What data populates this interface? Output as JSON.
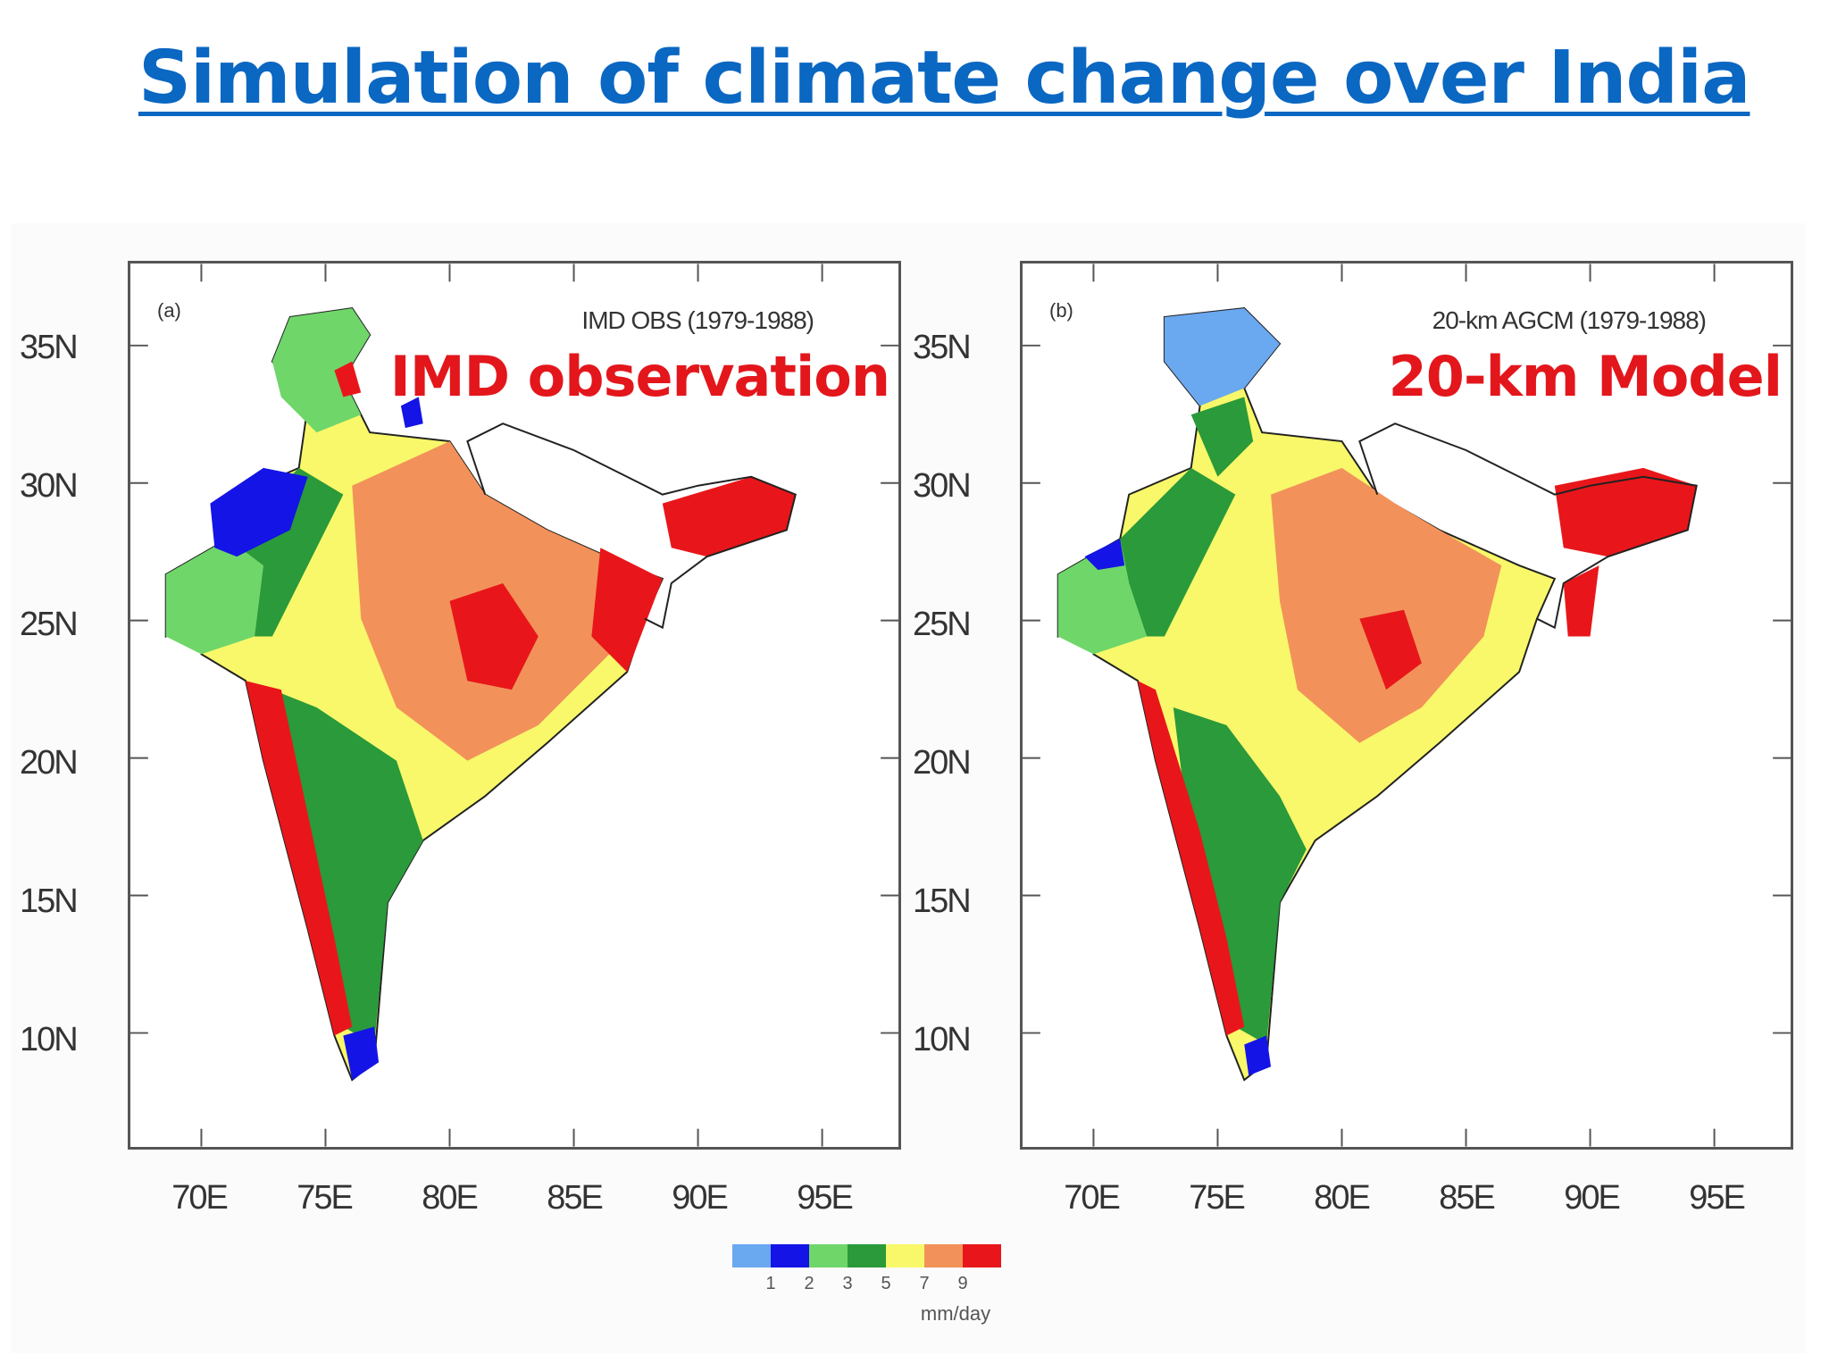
{
  "title": "Simulation of climate change over India",
  "panels": [
    {
      "id": "a",
      "letter": "(a)",
      "caption": "IMD OBS (1979-1988)",
      "overlay": "IMD observation"
    },
    {
      "id": "b",
      "letter": "(b)",
      "caption": "20-km AGCM (1979-1988)",
      "overlay": "20-km Model"
    }
  ],
  "lat_labels": [
    "35N",
    "30N",
    "25N",
    "20N",
    "15N",
    "10N"
  ],
  "lon_labels": [
    "70E",
    "75E",
    "80E",
    "85E",
    "90E",
    "95E"
  ],
  "colorbar": {
    "colors": [
      "#6aa8f0",
      "#1414e6",
      "#6fd66a",
      "#2a9a3a",
      "#f8f86a",
      "#f2925a",
      "#e8161a"
    ],
    "ticks": [
      "1",
      "2",
      "3",
      "5",
      "7",
      "9"
    ],
    "unit": "mm/day"
  }
}
